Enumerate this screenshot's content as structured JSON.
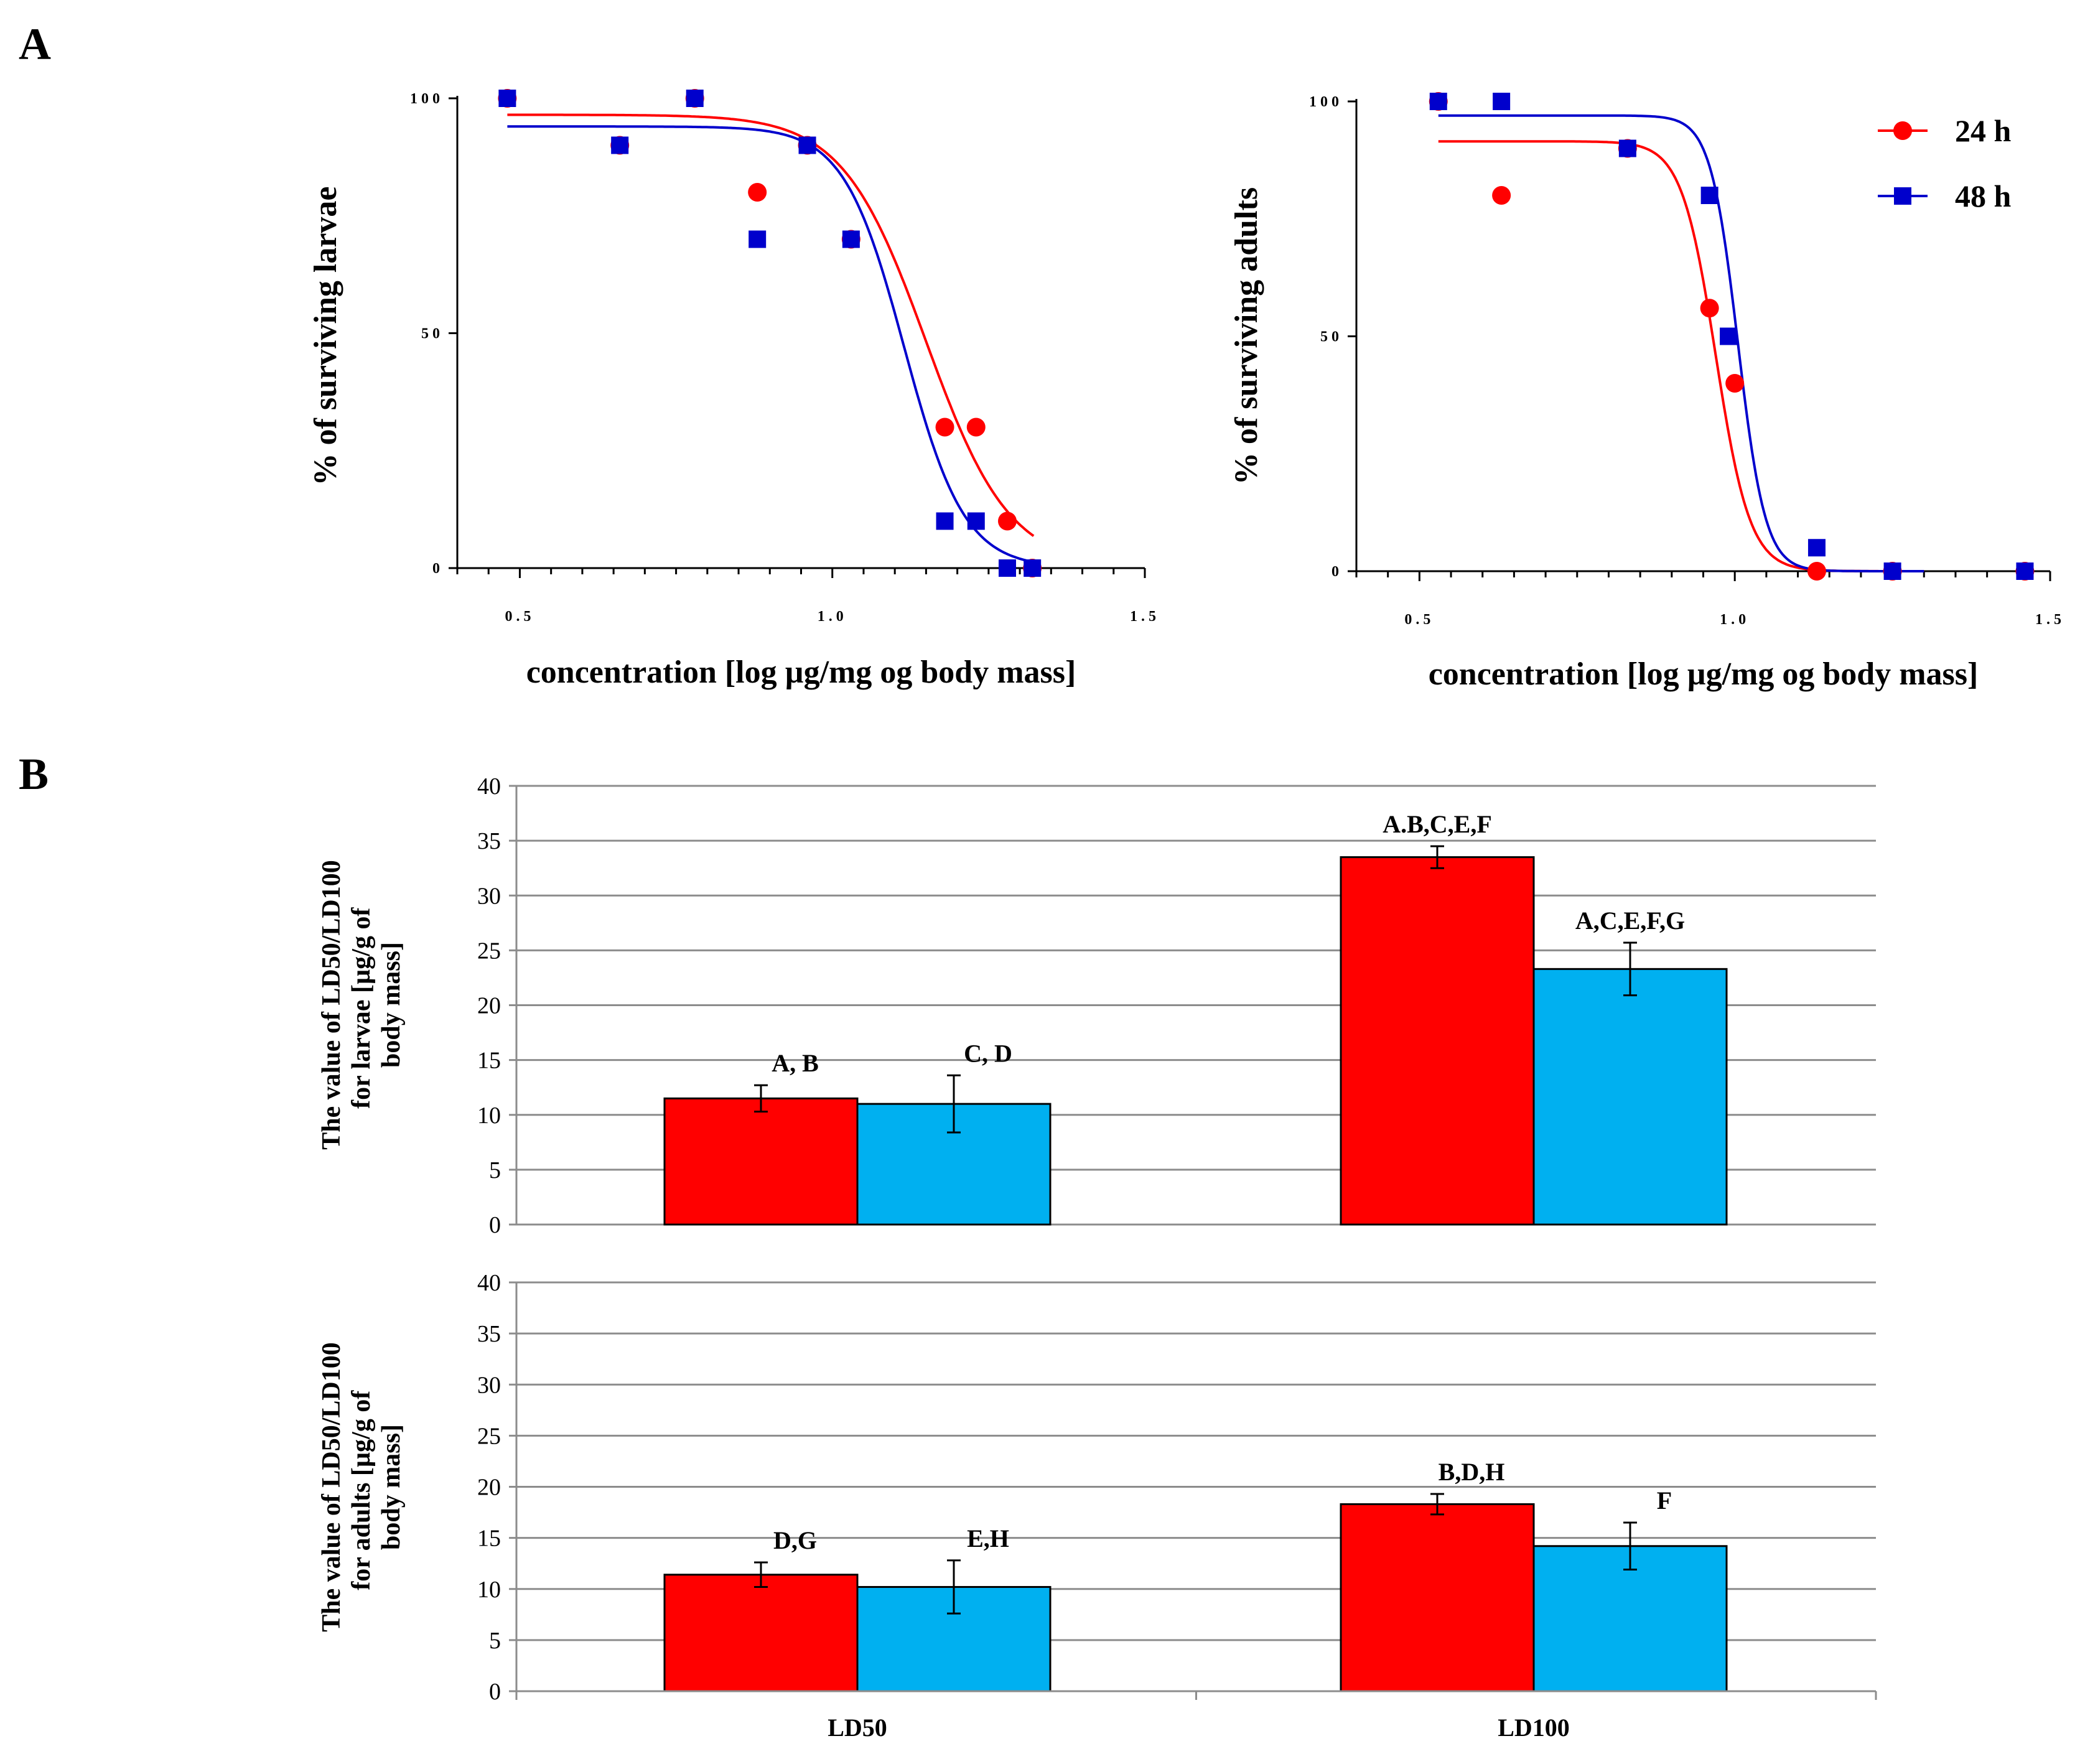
{
  "panel_labels": [
    "A",
    "B"
  ],
  "chart_data": [
    {
      "id": "larvae-curve",
      "type": "scatter",
      "title": "",
      "xlabel": "concentration [log µg/mg og body mass]",
      "ylabel": "% of surviving larvae",
      "xlim": [
        0.4,
        1.5
      ],
      "ylim": [
        0,
        100
      ],
      "xticks": [
        0.5,
        1.0,
        1.5
      ],
      "xtick_labels": [
        "0.5",
        "1.0",
        "1.5"
      ],
      "yticks": [
        0,
        50,
        100
      ],
      "ytick_labels": [
        "0",
        "50",
        "100"
      ],
      "series": [
        {
          "name": "24 h",
          "color": "#ff0000",
          "marker": "circle",
          "points": [
            [
              0.48,
              100
            ],
            [
              0.66,
              90
            ],
            [
              0.78,
              100
            ],
            [
              0.88,
              80
            ],
            [
              0.96,
              90
            ],
            [
              1.03,
              70
            ],
            [
              1.18,
              30
            ],
            [
              1.23,
              30
            ],
            [
              1.28,
              10
            ],
            [
              1.32,
              0
            ]
          ],
          "fit": {
            "top": 96.5,
            "bottom": 0,
            "log_ec50": 1.15,
            "hill": -6.5,
            "x_end": 1.322
          }
        },
        {
          "name": "48 h",
          "color": "#0000cc",
          "marker": "square",
          "points": [
            [
              0.48,
              100
            ],
            [
              0.66,
              90
            ],
            [
              0.78,
              100
            ],
            [
              0.88,
              70
            ],
            [
              0.96,
              90
            ],
            [
              1.03,
              70
            ],
            [
              1.18,
              10
            ],
            [
              1.23,
              10
            ],
            [
              1.28,
              0
            ],
            [
              1.32,
              0
            ]
          ],
          "fit": {
            "top": 94,
            "bottom": 0,
            "log_ec50": 1.115,
            "hill": -9,
            "x_end": 1.32
          }
        }
      ]
    },
    {
      "id": "adults-curve",
      "type": "scatter",
      "title": "",
      "xlabel": "concentration [log µg/mg og body mass]",
      "ylabel": "% of surviving adults",
      "xlim": [
        0.4,
        1.5
      ],
      "ylim": [
        0,
        100
      ],
      "xticks": [
        0.5,
        1.0,
        1.5
      ],
      "xtick_labels": [
        "0.5",
        "1.0",
        "1.5"
      ],
      "yticks": [
        0,
        50,
        100
      ],
      "ytick_labels": [
        "0",
        "50",
        "100"
      ],
      "series": [
        {
          "name": "24 h",
          "color": "#ff0000",
          "marker": "circle",
          "points": [
            [
              0.53,
              100
            ],
            [
              0.63,
              80
            ],
            [
              0.83,
              90
            ],
            [
              0.96,
              56
            ],
            [
              1.0,
              40
            ],
            [
              1.13,
              0
            ],
            [
              1.25,
              0
            ],
            [
              1.46,
              0
            ]
          ],
          "fit": {
            "top": 91.5,
            "bottom": 0,
            "log_ec50": 0.97,
            "hill": -16,
            "x_end": 1.3
          }
        },
        {
          "name": "48 h",
          "color": "#0000cc",
          "marker": "square",
          "points": [
            [
              0.53,
              100
            ],
            [
              0.63,
              100
            ],
            [
              0.83,
              90
            ],
            [
              0.96,
              80
            ],
            [
              0.99,
              50
            ],
            [
              1.13,
              5
            ],
            [
              1.25,
              0
            ],
            [
              1.46,
              0
            ]
          ],
          "fit": {
            "top": 97,
            "bottom": 0,
            "log_ec50": 1.005,
            "hill": -20,
            "x_end": 1.3
          }
        }
      ]
    },
    {
      "id": "larvae-bars",
      "type": "bar",
      "title": "",
      "ylabel": "The value of LD50/LD100 for larvae [µg/g of body mass]",
      "ylim": [
        0,
        40
      ],
      "yticks": [
        0,
        5,
        10,
        15,
        20,
        25,
        30,
        35,
        40
      ],
      "categories": [
        "LD50",
        "LD100"
      ],
      "series": [
        {
          "name": "24 h",
          "color": "#ff0000",
          "values": [
            11.5,
            33.5
          ],
          "errors": [
            1.2,
            1.0
          ],
          "annotations": [
            "A, B",
            "A.B,C,E,F"
          ]
        },
        {
          "name": "48 h",
          "color": "#00b0f0",
          "values": [
            11.0,
            23.3
          ],
          "errors": [
            2.6,
            2.4
          ],
          "annotations": [
            "C, D",
            "A,C,E,F,G"
          ]
        }
      ]
    },
    {
      "id": "adults-bars",
      "type": "bar",
      "title": "",
      "ylabel": "The value of LD50/LD100 for adults [µg/g of body mass]",
      "ylim": [
        0,
        40
      ],
      "yticks": [
        0,
        5,
        10,
        15,
        20,
        25,
        30,
        35,
        40
      ],
      "categories": [
        "LD50",
        "LD100"
      ],
      "series": [
        {
          "name": "24 h",
          "color": "#ff0000",
          "values": [
            11.4,
            18.3
          ],
          "errors": [
            1.2,
            1.0
          ],
          "annotations": [
            "D,G",
            "B,D,H"
          ]
        },
        {
          "name": "48 h",
          "color": "#00b0f0",
          "values": [
            10.2,
            14.2
          ],
          "errors": [
            2.6,
            2.3
          ],
          "annotations": [
            "E,H",
            "F"
          ]
        }
      ]
    }
  ],
  "legend": [
    {
      "label": "24 h",
      "color": "#ff0000",
      "marker": "circle"
    },
    {
      "label": "48 h",
      "color": "#0000cc",
      "marker": "square"
    }
  ]
}
